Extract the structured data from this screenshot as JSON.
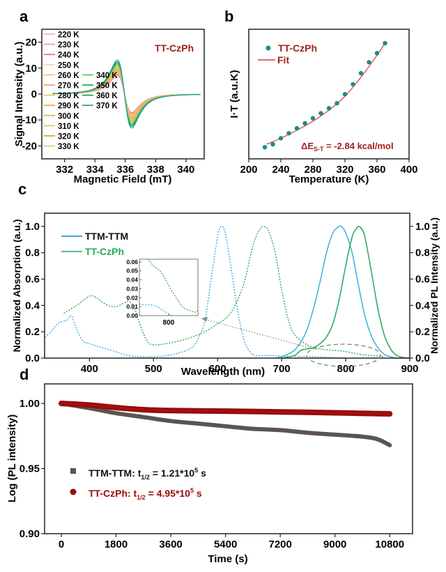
{
  "figure": {
    "panels": [
      "a",
      "b",
      "c",
      "d"
    ]
  },
  "chart_data": [
    {
      "id": "a",
      "type": "line",
      "panel_label": "a",
      "title": "",
      "annotation": "TT-CzPh",
      "annotation_color": "#a01f1f",
      "xlabel": "Magnetic Field (mT)",
      "ylabel": "Signal Intensity (a.u.)",
      "xlim": [
        330.5,
        341.2
      ],
      "ylim": [
        -25,
        25
      ],
      "xticks": [
        332,
        334,
        336,
        338,
        340
      ],
      "yticks": [
        -20,
        -10,
        0,
        10,
        20
      ],
      "center_field": 335.95,
      "peak_pos": 335.45,
      "trough_pos": 336.4,
      "series": [
        {
          "name": "220 K",
          "color": "#f4b6c2",
          "amplitude": 12.5
        },
        {
          "name": "230 K",
          "color": "#ef9fb0",
          "amplitude": 13.0
        },
        {
          "name": "240 K",
          "color": "#ec6f8e",
          "amplitude": 13.6
        },
        {
          "name": "250 K",
          "color": "#f7d9a8",
          "amplitude": 14.2
        },
        {
          "name": "260 K",
          "color": "#f8c08a",
          "amplitude": 14.8
        },
        {
          "name": "270 K",
          "color": "#eea57a",
          "amplitude": 15.4
        },
        {
          "name": "280 K",
          "color": "#f6c35c",
          "amplitude": 16.0
        },
        {
          "name": "290 K",
          "color": "#eea84a",
          "amplitude": 16.7
        },
        {
          "name": "300 K",
          "color": "#e8b06a",
          "amplitude": 17.4
        },
        {
          "name": "310 K",
          "color": "#c8d95a",
          "amplitude": 18.1
        },
        {
          "name": "320 K",
          "color": "#d8a640",
          "amplitude": 18.8
        },
        {
          "name": "330 K",
          "color": "#b5e07a",
          "amplitude": 19.6
        },
        {
          "name": "340 K",
          "color": "#5cc95a",
          "amplitude": 20.4
        },
        {
          "name": "350 K",
          "color": "#2fa84a",
          "amplitude": 21.2
        },
        {
          "name": "360 K",
          "color": "#2f9a6a",
          "amplitude": 22.2
        },
        {
          "name": "370 K",
          "color": "#2aa89a",
          "amplitude": 23.3
        }
      ]
    },
    {
      "id": "b",
      "type": "scatter",
      "panel_label": "b",
      "xlabel": "Temperature (K)",
      "ylabel": "I·T (a.u.K)",
      "xlim": [
        200,
        400
      ],
      "ylim": [
        0,
        1
      ],
      "xticks": [
        200,
        240,
        280,
        320,
        360,
        400
      ],
      "yticks": [],
      "legend": [
        {
          "name": "TT-CzPh",
          "marker": "circle",
          "color": "#1a8a8a"
        },
        {
          "name": "Fit",
          "marker": "line",
          "color": "#d93a3a"
        }
      ],
      "legend_text_color": "#a01f1f",
      "annotation": {
        "prefix": "ΔE",
        "subscript": "S-T",
        "suffix": " = -2.84 kcal/mol"
      },
      "series": [
        {
          "name": "TT-CzPh",
          "x": [
            220,
            230,
            240,
            250,
            260,
            270,
            280,
            290,
            300,
            310,
            320,
            330,
            340,
            350,
            360,
            370
          ],
          "y": [
            0.06,
            0.09,
            0.15,
            0.2,
            0.25,
            0.3,
            0.35,
            0.4,
            0.45,
            0.5,
            0.59,
            0.69,
            0.8,
            0.91,
            1.0,
            1.1
          ]
        },
        {
          "name": "Fit",
          "x": [
            222,
            240,
            260,
            280,
            300,
            320,
            340,
            360,
            370
          ],
          "y": [
            0.09,
            0.15,
            0.23,
            0.32,
            0.43,
            0.57,
            0.76,
            0.98,
            1.1
          ]
        }
      ]
    },
    {
      "id": "c",
      "type": "line",
      "panel_label": "c",
      "xlabel": "Wavelength (nm)",
      "ylabel": "Normalized Absorption (a.u.)",
      "ylabel_right": "Normalized PL Intensity (a.u.)",
      "xlim": [
        330,
        900
      ],
      "ylim": [
        0,
        1.1
      ],
      "xticks": [
        400,
        500,
        600,
        700,
        800,
        900
      ],
      "yticks": [
        0.0,
        0.2,
        0.4,
        0.6,
        0.8,
        1.0
      ],
      "legend": [
        {
          "name": "TTM-TTM",
          "color": "#3aaee0",
          "text_color": "#111111"
        },
        {
          "name": "TT-CzPh",
          "color": "#27a85a",
          "text_color": "#27a85a"
        }
      ],
      "series": [
        {
          "name": "TTM-TTM absorption",
          "style": "dotted",
          "color": "#3aaee0",
          "x": [
            330,
            340,
            350,
            360,
            365,
            372,
            380,
            390,
            400,
            420,
            440,
            460,
            480,
            500,
            520,
            540,
            560,
            570,
            580,
            590,
            600,
            606,
            612,
            620,
            630,
            640,
            650,
            660,
            680,
            700,
            750,
            800
          ],
          "y": [
            0.16,
            0.2,
            0.26,
            0.28,
            0.29,
            0.32,
            0.22,
            0.13,
            0.11,
            0.08,
            0.05,
            0.02,
            0.01,
            0.01,
            0.02,
            0.04,
            0.08,
            0.15,
            0.28,
            0.6,
            0.92,
            1.0,
            0.95,
            0.72,
            0.4,
            0.16,
            0.05,
            0.02,
            0.02,
            0.015,
            0.01,
            0.0
          ]
        },
        {
          "name": "TT-CzPh absorption",
          "style": "dotted",
          "color": "#27a85a",
          "x": [
            360,
            380,
            400,
            410,
            425,
            440,
            455,
            462,
            470,
            480,
            490,
            500,
            520,
            540,
            560,
            580,
            600,
            620,
            640,
            655,
            665,
            672,
            680,
            690,
            700,
            710,
            720,
            740,
            760,
            780,
            800,
            820,
            840,
            860
          ],
          "y": [
            0.34,
            0.4,
            0.47,
            0.46,
            0.41,
            0.39,
            0.42,
            0.43,
            0.38,
            0.24,
            0.13,
            0.1,
            0.11,
            0.13,
            0.16,
            0.2,
            0.26,
            0.34,
            0.55,
            0.85,
            0.97,
            1.0,
            0.96,
            0.8,
            0.52,
            0.3,
            0.18,
            0.1,
            0.07,
            0.06,
            0.05,
            0.03,
            0.02,
            0.01
          ]
        },
        {
          "name": "TTM-TTM PL",
          "style": "solid",
          "color": "#3aaee0",
          "x": [
            690,
            700,
            710,
            720,
            730,
            740,
            750,
            760,
            770,
            780,
            790,
            795,
            800,
            810,
            820,
            830,
            840,
            850,
            860,
            870,
            880,
            890
          ],
          "y": [
            0.0,
            0.01,
            0.03,
            0.06,
            0.12,
            0.22,
            0.38,
            0.58,
            0.8,
            0.95,
            1.0,
            0.99,
            0.95,
            0.8,
            0.55,
            0.32,
            0.17,
            0.08,
            0.03,
            0.01,
            0.0,
            0.0
          ]
        },
        {
          "name": "TT-CzPh PL",
          "style": "solid",
          "color": "#27a85a",
          "x": [
            700,
            720,
            730,
            740,
            750,
            760,
            770,
            780,
            790,
            800,
            810,
            815,
            820,
            825,
            830,
            840,
            850,
            860,
            870,
            880,
            890,
            900
          ],
          "y": [
            0.0,
            0.02,
            0.06,
            0.07,
            0.08,
            0.11,
            0.16,
            0.26,
            0.45,
            0.7,
            0.92,
            0.97,
            1.0,
            0.98,
            0.92,
            0.66,
            0.38,
            0.18,
            0.07,
            0.02,
            0.005,
            0.0
          ]
        }
      ],
      "inset": {
        "xticks": [
          800
        ],
        "yticks": [
          "0.00",
          "0.01",
          "0.02",
          "0.03",
          "0.04",
          "0.05",
          "0.06"
        ],
        "xlim": [
          750,
          850
        ],
        "ylim": [
          0,
          0.063
        ],
        "series": [
          {
            "name": "TT-CzPh",
            "color": "#27a85a",
            "x": [
              765,
              775,
              785,
              795,
              805,
              815,
              825,
              835,
              845,
              850
            ],
            "y": [
              0.063,
              0.055,
              0.05,
              0.04,
              0.028,
              0.018,
              0.009,
              0.006,
              0.004,
              0.006
            ]
          },
          {
            "name": "TTM-TTM",
            "color": "#3aaee0",
            "x": [
              750,
              760,
              770,
              780,
              790,
              800,
              805
            ],
            "y": [
              0.013,
              0.012,
              0.012,
              0.01,
              0.006,
              0.002,
              0.0
            ]
          }
        ]
      }
    },
    {
      "id": "d",
      "type": "scatter",
      "panel_label": "d",
      "xlabel": "Time (s)",
      "ylabel": "Log (PL intensity)",
      "xlim": [
        -550,
        11550
      ],
      "ylim": [
        0.9,
        1.015
      ],
      "xticks": [
        0,
        1800,
        3600,
        5400,
        7200,
        9000,
        10800
      ],
      "yticks": [
        "0.90",
        "0.95",
        "1.00"
      ],
      "legend": [
        {
          "name": "TTM-TTM",
          "marker": "square",
          "color": "#555555",
          "text_color": "#111111",
          "label": "TTM-TTM: t",
          "sub": "1/2",
          "value": " = 1.21*10",
          "sup": "5",
          "unit": " s"
        },
        {
          "name": "TT-CzPh",
          "marker": "circle",
          "color": "#9b0a0a",
          "text_color": "#9b0a0a",
          "label": "TT-CzPh: t",
          "sub": "1/2",
          "value": " = 4.95*10",
          "sup": "5",
          "unit": " s"
        }
      ],
      "series": [
        {
          "name": "TTM-TTM",
          "color": "#555555",
          "x": [
            0,
            900,
            1800,
            2700,
            3600,
            4500,
            5400,
            6300,
            7200,
            8100,
            9000,
            9900,
            10400,
            10800
          ],
          "y": [
            1.0,
            0.9965,
            0.9925,
            0.9895,
            0.9865,
            0.9845,
            0.9825,
            0.9805,
            0.9795,
            0.9775,
            0.976,
            0.9745,
            0.9725,
            0.968
          ]
        },
        {
          "name": "TT-CzPh",
          "color": "#9b0a0a",
          "x": [
            0,
            900,
            1800,
            2700,
            3600,
            5400,
            7200,
            9000,
            10800
          ],
          "y": [
            1.0,
            0.9988,
            0.9968,
            0.9952,
            0.9945,
            0.9941,
            0.9935,
            0.9928,
            0.992
          ]
        }
      ]
    }
  ]
}
